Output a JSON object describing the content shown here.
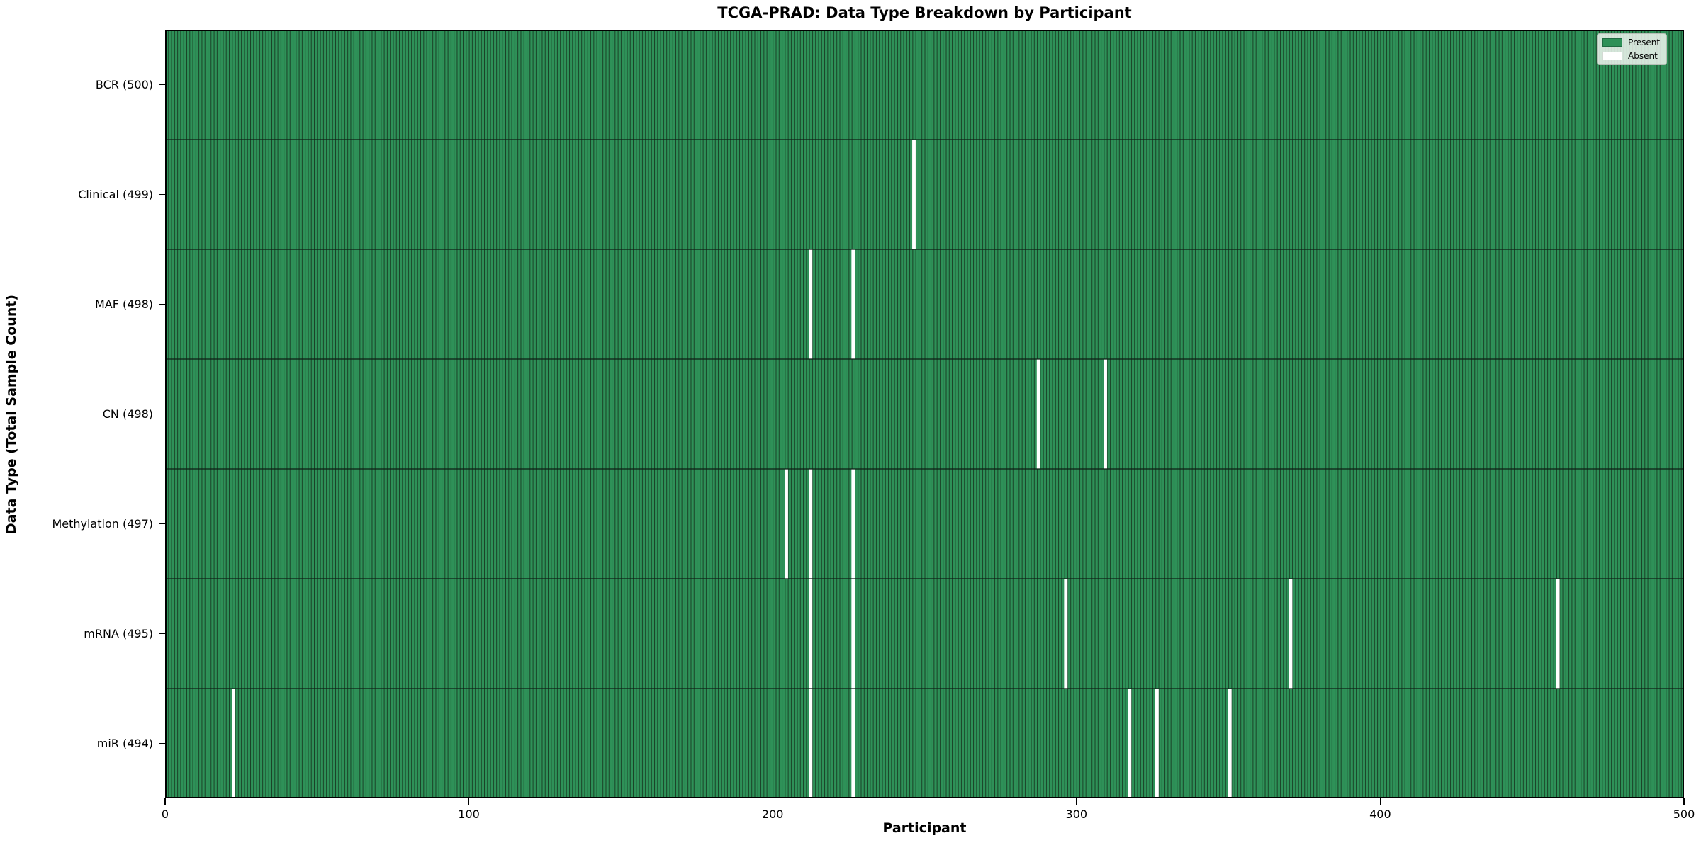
{
  "title": "TCGA-PRAD: Data Type Breakdown by Participant",
  "axes": {
    "x_label": "Participant",
    "y_label": "Data Type (Total Sample Count)"
  },
  "legend": {
    "items": [
      {
        "label": "Present",
        "color": "#2e9158"
      },
      {
        "label": "Absent",
        "color": "#ffffff"
      }
    ]
  },
  "chart_data": {
    "type": "heatmap",
    "title": "TCGA-PRAD: Data Type Breakdown by Participant",
    "xlabel": "Participant",
    "ylabel": "Data Type (Total Sample Count)",
    "x_range": [
      0,
      500
    ],
    "x_ticks": [
      "0",
      "100",
      "200",
      "300",
      "400",
      "500"
    ],
    "n_participants": 500,
    "legend_position": "upper right",
    "grid": false,
    "rows": [
      {
        "label": "BCR (500)",
        "data_type": "BCR",
        "total": 500,
        "absent": []
      },
      {
        "label": "Clinical (499)",
        "data_type": "Clinical",
        "total": 499,
        "absent": [
          246
        ]
      },
      {
        "label": "MAF (498)",
        "data_type": "MAF",
        "total": 498,
        "absent": [
          212,
          226
        ]
      },
      {
        "label": "CN (498)",
        "data_type": "CN",
        "total": 498,
        "absent": [
          287,
          309
        ]
      },
      {
        "label": "Methylation (497)",
        "data_type": "Methylation",
        "total": 497,
        "absent": [
          204,
          212,
          226
        ]
      },
      {
        "label": "mRNA (495)",
        "data_type": "mRNA",
        "total": 495,
        "absent": [
          212,
          226,
          296,
          370,
          458
        ]
      },
      {
        "label": "miR (494)",
        "data_type": "miR",
        "total": 494,
        "absent": [
          22,
          212,
          226,
          317,
          326,
          350
        ]
      }
    ],
    "colors": {
      "present": "#2e9158",
      "absent": "#ffffff",
      "bar_edge": "#16321f",
      "row_divider": "#0d1f14",
      "plot_border": "#000000"
    }
  }
}
